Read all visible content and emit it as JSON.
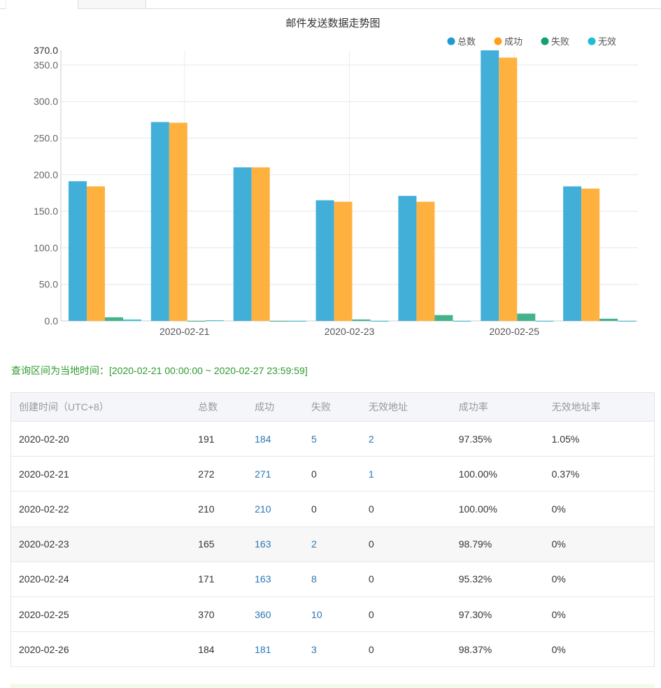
{
  "chart_data": {
    "type": "bar",
    "title": "邮件发送数据走势图",
    "categories": [
      "2020-02-20",
      "2020-02-21",
      "2020-02-22",
      "2020-02-23",
      "2020-02-24",
      "2020-02-25",
      "2020-02-26"
    ],
    "x_tick_labels_shown": [
      "2020-02-21",
      "2020-02-23",
      "2020-02-25"
    ],
    "series": [
      {
        "name": "总数",
        "color": "#42afd9",
        "legend_color": "#1f9bd1",
        "values": [
          191,
          272,
          210,
          165,
          171,
          370,
          184
        ]
      },
      {
        "name": "成功",
        "color": "#ffb140",
        "legend_color": "#ff9f1a",
        "values": [
          184,
          271,
          210,
          163,
          163,
          360,
          181
        ]
      },
      {
        "name": "失败",
        "color": "#44b38c",
        "legend_color": "#14a06b",
        "values": [
          5,
          0,
          0,
          2,
          8,
          10,
          3
        ]
      },
      {
        "name": "无效",
        "color": "#3cc4d6",
        "legend_color": "#1ebdd4",
        "values": [
          2,
          1,
          0,
          0,
          0,
          0,
          0
        ]
      }
    ],
    "ylim": [
      0,
      370
    ],
    "y_ticks": [
      "0.0",
      "50.0",
      "100.0",
      "150.0",
      "200.0",
      "250.0",
      "300.0",
      "350.0",
      "370.0"
    ],
    "grid": true,
    "legend": "top-right"
  },
  "note": "查询区间为当地时间：[2020-02-21 00:00:00 ~ 2020-02-27 23:59:59]",
  "table": {
    "headers": [
      "创建时间（UTC+8）",
      "总数",
      "成功",
      "失败",
      "无效地址",
      "成功率",
      "无效地址率"
    ],
    "rows": [
      [
        "2020-02-20",
        "191",
        "184",
        "5",
        "2",
        "97.35%",
        "1.05%"
      ],
      [
        "2020-02-21",
        "272",
        "271",
        "0",
        "1",
        "100.00%",
        "0.37%"
      ],
      [
        "2020-02-22",
        "210",
        "210",
        "0",
        "0",
        "100.00%",
        "0%"
      ],
      [
        "2020-02-23",
        "165",
        "163",
        "2",
        "0",
        "98.79%",
        "0%"
      ],
      [
        "2020-02-24",
        "171",
        "163",
        "8",
        "0",
        "95.32%",
        "0%"
      ],
      [
        "2020-02-25",
        "370",
        "360",
        "10",
        "0",
        "97.30%",
        "0%"
      ],
      [
        "2020-02-26",
        "184",
        "181",
        "3",
        "0",
        "98.37%",
        "0%"
      ]
    ]
  }
}
